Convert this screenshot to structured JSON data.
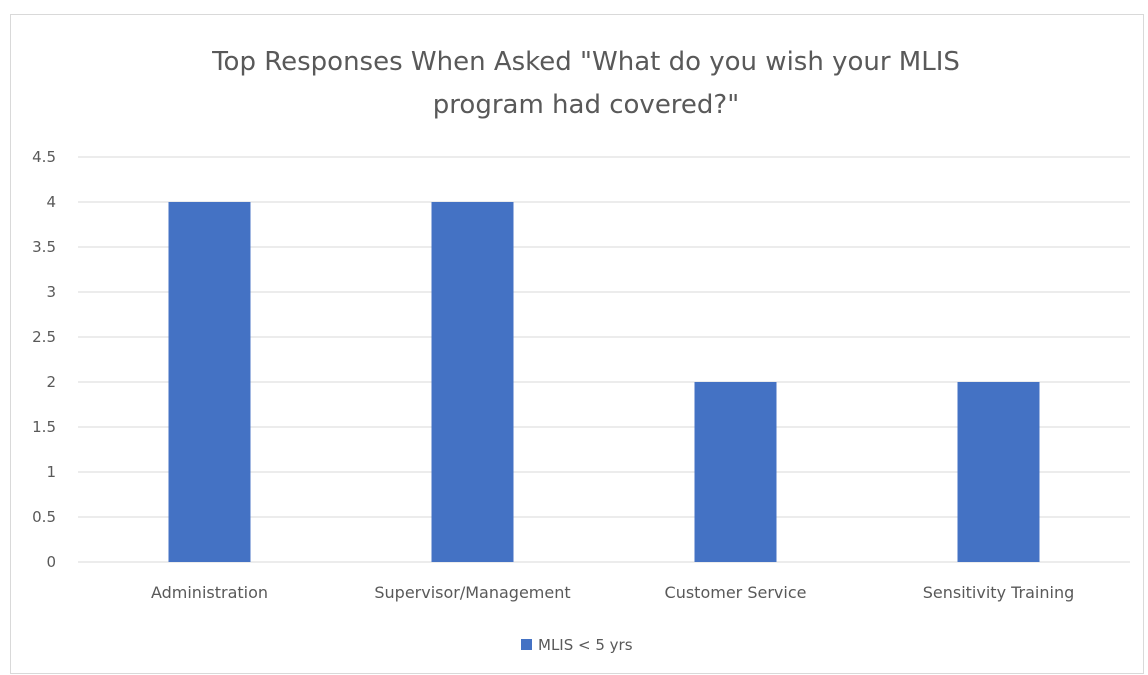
{
  "chart_data": {
    "type": "bar",
    "title_lines": [
      "Top Responses When Asked \"What do you wish your MLIS",
      "program had covered?\""
    ],
    "categories": [
      "Administration",
      "Supervisor/Management",
      "Customer Service",
      "Sensitivity Training"
    ],
    "series": [
      {
        "name": "MLIS < 5 yrs",
        "values": [
          4,
          4,
          2,
          2
        ],
        "color": "#4472c4"
      }
    ],
    "ylim": [
      0,
      4.5
    ],
    "yticks": [
      "0",
      "0.5",
      "1",
      "1.5",
      "2",
      "2.5",
      "3",
      "3.5",
      "4",
      "4.5"
    ],
    "grid": true,
    "legend_position": "bottom"
  }
}
